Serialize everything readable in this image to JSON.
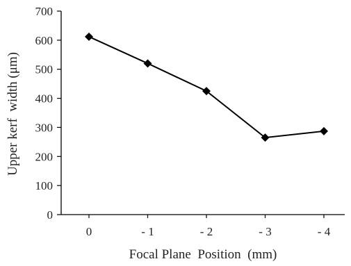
{
  "chart_data": {
    "type": "line",
    "title": "",
    "xlabel": "Focal Plane  Position  (mm)",
    "ylabel": "Upper kerf  width (μm)",
    "categories": [
      "0",
      "- 1",
      "- 2",
      "- 3",
      "- 4"
    ],
    "series": [
      {
        "values": [
          612,
          520,
          425,
          265,
          287
        ]
      }
    ],
    "ylim": [
      0,
      700
    ],
    "yticks": [
      0,
      100,
      200,
      300,
      400,
      500,
      600,
      700
    ],
    "grid": false,
    "legend": "none",
    "marker": "diamond",
    "line_color": "#000000",
    "marker_color": "#000000"
  }
}
